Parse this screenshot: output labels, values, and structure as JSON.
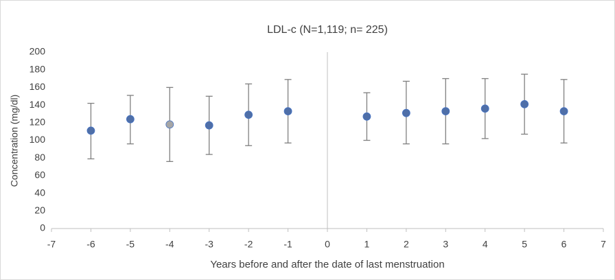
{
  "chart_data": {
    "type": "scatter",
    "title": "LDL-c (N=1,119; n= 225)",
    "x_label": "Years before and after the date of last menstruation",
    "y_label": "Concentration (mg/dl)",
    "x": [
      -6,
      -5,
      -4,
      -3,
      -2,
      -1,
      1,
      2,
      3,
      4,
      5,
      6
    ],
    "values": [
      111,
      124,
      118,
      117,
      129,
      133,
      127,
      131,
      133,
      136,
      141,
      133
    ],
    "upper": [
      142,
      151,
      160,
      150,
      164,
      169,
      154,
      167,
      170,
      170,
      175,
      169
    ],
    "lower": [
      79,
      96,
      76,
      84,
      94,
      97,
      100,
      96,
      96,
      102,
      107,
      97
    ],
    "colors": [
      "#4f6fa8",
      "#4f6fa8",
      "#a6a6a6",
      "#4f6fa8",
      "#4f6fa8",
      "#4f6fa8",
      "#4f6fa8",
      "#4f6fa8",
      "#4f6fa8",
      "#4f6fa8",
      "#4f6fa8",
      "#4f6fa8"
    ],
    "xlim": [
      -7,
      7
    ],
    "xticks": [
      -7,
      -6,
      -5,
      -4,
      -3,
      -2,
      -1,
      0,
      1,
      2,
      3,
      4,
      5,
      6,
      7
    ],
    "ylim": [
      0,
      200
    ],
    "yticks": [
      0,
      20,
      40,
      60,
      80,
      100,
      120,
      140,
      160,
      180,
      200
    ]
  }
}
